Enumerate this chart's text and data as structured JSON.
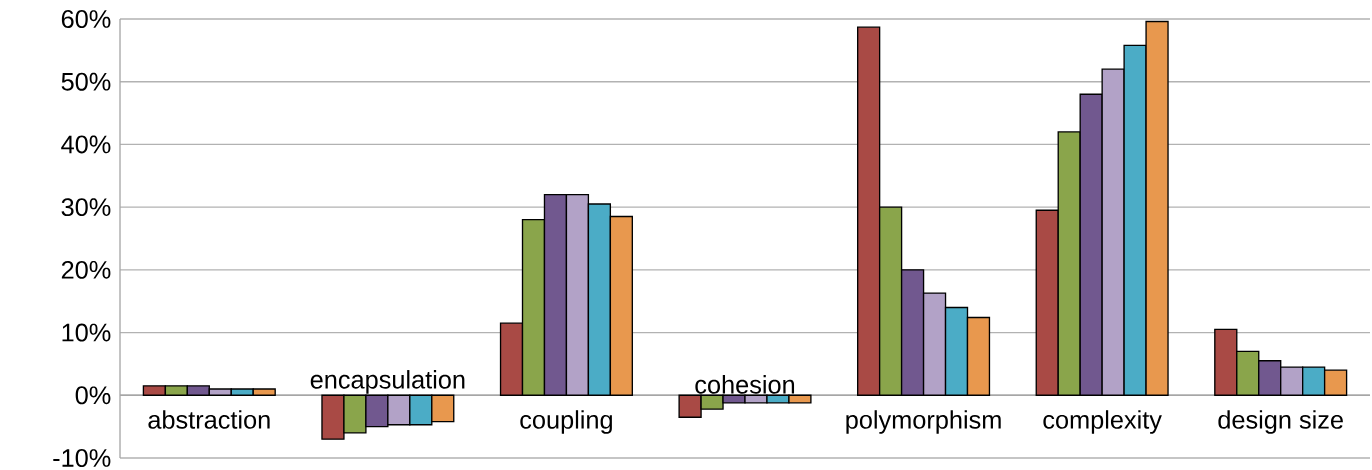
{
  "chart_data": {
    "type": "bar",
    "categories": [
      "abstraction",
      "encapsulation",
      "coupling",
      "cohesion",
      "polymorphism",
      "complexity",
      "design size"
    ],
    "series": [
      {
        "color": "#a94a45",
        "values": [
          1.5,
          -7,
          11.5,
          -3.5,
          58.7,
          29.5,
          10.5
        ]
      },
      {
        "color": "#8aa54b",
        "values": [
          1.5,
          -6,
          28,
          -2.2,
          30,
          42,
          7
        ]
      },
      {
        "color": "#71588f",
        "values": [
          1.5,
          -5,
          32,
          -1.2,
          20,
          48,
          5.5
        ]
      },
      {
        "color": "#b2a2c7",
        "values": [
          1,
          -4.7,
          32,
          -1.2,
          16.3,
          52,
          4.5
        ]
      },
      {
        "color": "#4bacc6",
        "values": [
          1,
          -4.7,
          30.5,
          -1.2,
          14,
          55.8,
          4.5
        ]
      },
      {
        "color": "#e8984e",
        "values": [
          1,
          -4.2,
          28.5,
          -1.2,
          12.4,
          59.6,
          4
        ]
      }
    ],
    "ylim": [
      -10,
      60
    ],
    "yticks": [
      {
        "value": -10,
        "label": "-10%"
      },
      {
        "value": 0,
        "label": "0%"
      },
      {
        "value": 10,
        "label": "10%"
      },
      {
        "value": 20,
        "label": "20%"
      },
      {
        "value": 30,
        "label": "30%"
      },
      {
        "value": 40,
        "label": "40%"
      },
      {
        "value": 50,
        "label": "50%"
      },
      {
        "value": 60,
        "label": "60%"
      }
    ],
    "grid": "y"
  }
}
